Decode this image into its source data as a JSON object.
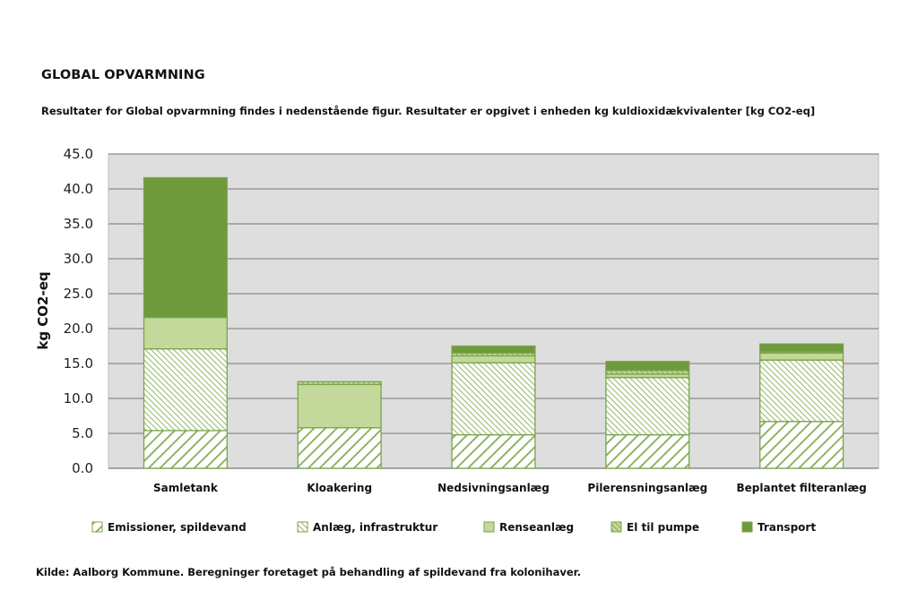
{
  "heading": "GLOBAL OPVARMNING",
  "subtitle": "Resultater for Global opvarmning findes i nedenstående figur. Resultater er opgivet i enheden kg kuldioxidækvivalenter [kg CO2-eq]",
  "source": "Kilde: Aalborg Kommune. Beregninger foretaget på behandling af spildevand fra kolonihaver.",
  "colors": {
    "plot_bg": "#dedede",
    "grid": "#8c8c8c",
    "bar_stroke": "#7aa34a",
    "hatch_bg": "#ffffff",
    "hatch_line": "#86ad55",
    "renseanlaeg": "#c3d99b",
    "el_bg": "#c3d99b",
    "el_line": "#76a044",
    "transport": "#6f9a3c"
  },
  "chart_data": {
    "type": "bar",
    "stacked": true,
    "title": "",
    "xlabel": "",
    "ylabel": "kg CO2-eq",
    "ylim": [
      0,
      45
    ],
    "yticks": [
      0,
      5,
      10,
      15,
      20,
      25,
      30,
      35,
      40,
      45
    ],
    "ytick_labels": [
      "0.0",
      "5.0",
      "10.0",
      "15.0",
      "20.0",
      "25.0",
      "30.0",
      "35.0",
      "40.0",
      "45.0"
    ],
    "grid": true,
    "legend_position": "bottom",
    "categories": [
      "Samletank",
      "Kloakering",
      "Nedsivningsanlæg",
      "Pilerensningsanlæg",
      "Beplantet filteranlæg"
    ],
    "series": [
      {
        "name": "Emissioner, spildevand",
        "pattern": "hatch-wide",
        "values": [
          5.4,
          5.8,
          4.8,
          4.8,
          6.7
        ]
      },
      {
        "name": "Anlæg, infrastruktur",
        "pattern": "hatch-dense",
        "values": [
          11.7,
          0.0,
          10.3,
          8.2,
          8.8
        ]
      },
      {
        "name": "Renseanlæg",
        "pattern": "solid-light",
        "values": [
          4.5,
          6.2,
          1.0,
          0.5,
          1.0
        ]
      },
      {
        "name": "El til pumpe",
        "pattern": "hatch-el",
        "values": [
          0.0,
          0.4,
          0.4,
          0.5,
          0.2
        ]
      },
      {
        "name": "Transport",
        "pattern": "solid-dark",
        "values": [
          20.0,
          0.0,
          1.0,
          1.3,
          1.1
        ]
      }
    ]
  }
}
